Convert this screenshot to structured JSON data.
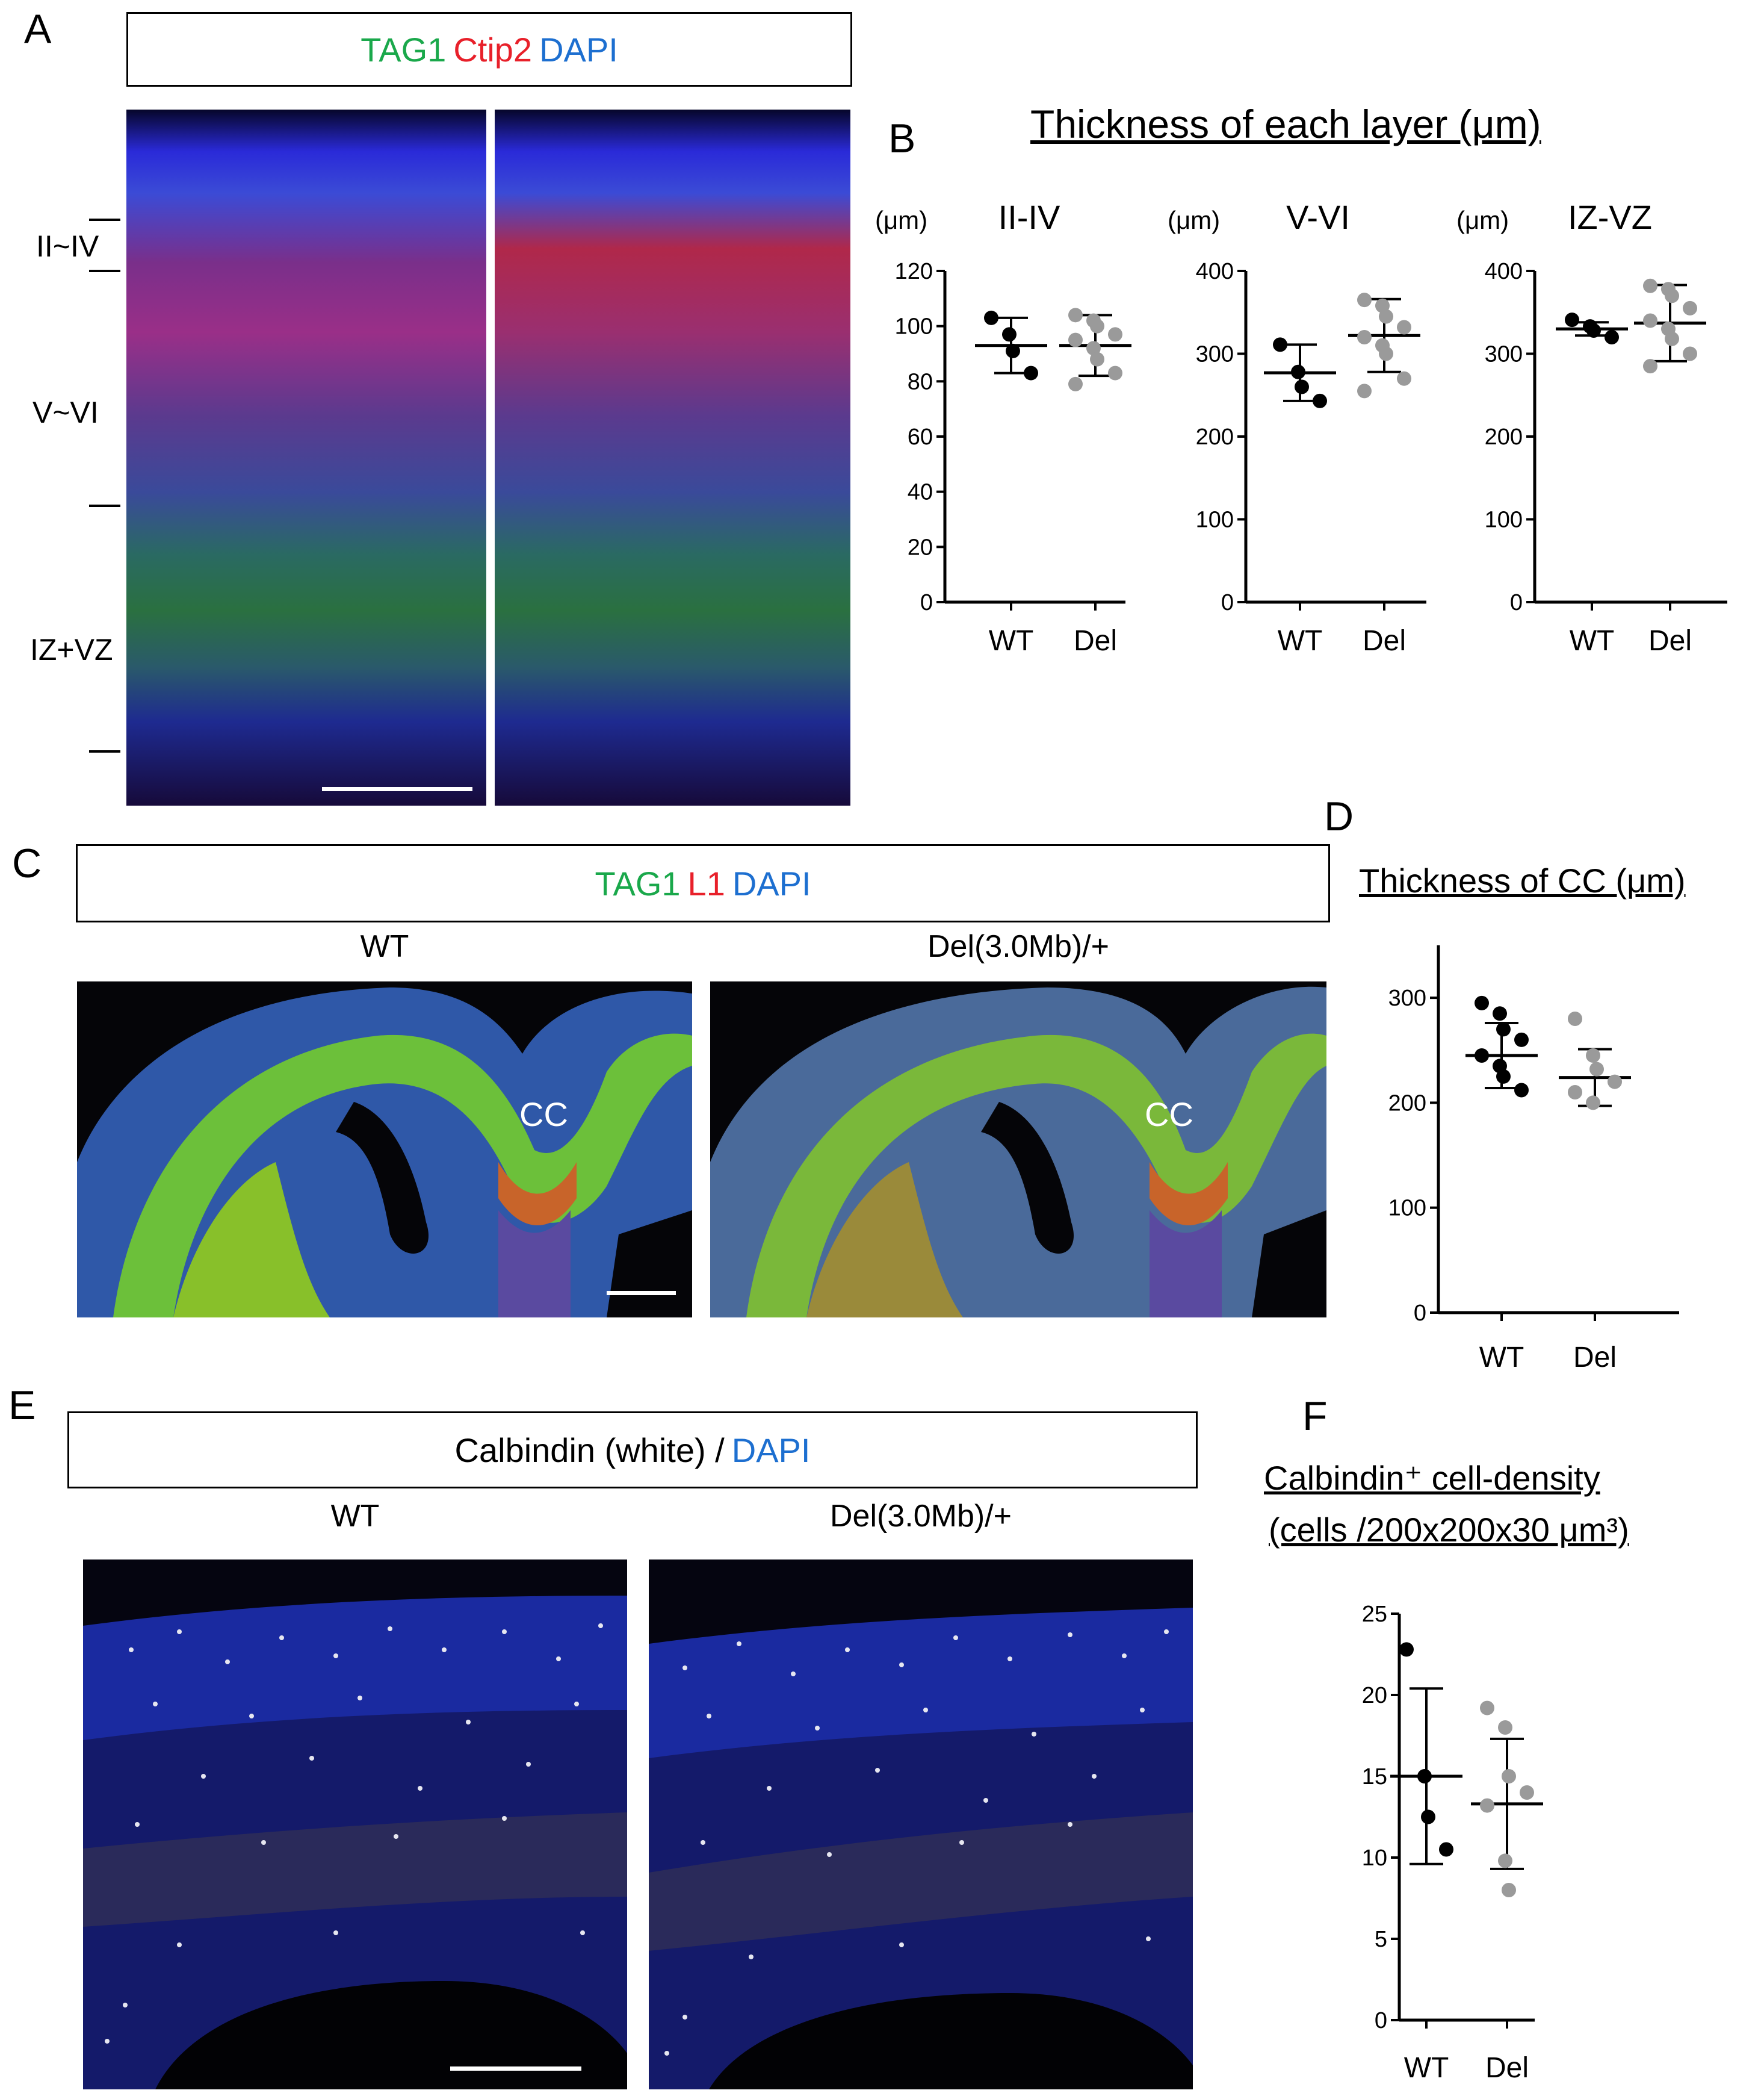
{
  "panels": {
    "A": {
      "letter": "A",
      "legend": [
        {
          "text": "TAG1",
          "color": "#1aa84b"
        },
        {
          "text": "Ctip2",
          "color": "#e8202a"
        },
        {
          "text": "DAPI",
          "color": "#1d6fd0"
        }
      ],
      "layer_labels": [
        "II~IV",
        "V~VI",
        "IZ+VZ"
      ]
    },
    "B": {
      "letter": "B",
      "title": "Thickness of each layer (μm)"
    },
    "C": {
      "letter": "C",
      "legend": [
        {
          "text": "TAG1",
          "color": "#1aa84b"
        },
        {
          "text": "L1",
          "color": "#e8202a"
        },
        {
          "text": "DAPI",
          "color": "#1d6fd0"
        }
      ],
      "image_labels": [
        "WT",
        "Del(3.0Mb)/+"
      ],
      "cc_label": "CC"
    },
    "D": {
      "letter": "D",
      "title": "Thickness of CC (μm)"
    },
    "E": {
      "letter": "E",
      "legend": [
        {
          "text": "Calbindin (white) /",
          "color": "#000000"
        },
        {
          "text": "DAPI",
          "color": "#1d6fd0"
        }
      ],
      "image_labels": [
        "WT",
        "Del(3.0Mb)/+"
      ]
    },
    "F": {
      "letter": "F",
      "title_line1": "Calbindin⁺ cell-density",
      "title_line2": "(cells /200x200x30 μm³)"
    }
  },
  "chart_data": [
    {
      "id": "B-II-IV",
      "type": "scatter",
      "title": "II-IV",
      "ylabel": "(μm)",
      "categories": [
        "WT",
        "Del"
      ],
      "ylim": [
        0,
        120
      ],
      "yticks": [
        0,
        20,
        40,
        60,
        80,
        100,
        120
      ],
      "series": [
        {
          "name": "WT",
          "color": "#000000",
          "mean": 93,
          "sd": 10,
          "points": [
            103,
            97,
            91,
            83
          ]
        },
        {
          "name": "Del",
          "color": "#9a9a9a",
          "mean": 93,
          "sd": 11,
          "points": [
            104,
            102,
            100,
            97,
            95,
            92,
            88,
            83,
            79
          ]
        }
      ]
    },
    {
      "id": "B-V-VI",
      "type": "scatter",
      "title": "V-VI",
      "ylabel": "(μm)",
      "categories": [
        "WT",
        "Del"
      ],
      "ylim": [
        0,
        400
      ],
      "yticks": [
        0,
        100,
        200,
        300,
        400
      ],
      "series": [
        {
          "name": "WT",
          "color": "#000000",
          "mean": 277,
          "sd": 34,
          "points": [
            311,
            278,
            260,
            243
          ]
        },
        {
          "name": "Del",
          "color": "#9a9a9a",
          "mean": 322,
          "sd": 44,
          "points": [
            365,
            358,
            345,
            332,
            320,
            310,
            300,
            270,
            255
          ]
        }
      ]
    },
    {
      "id": "B-IZ-VZ",
      "type": "scatter",
      "title": "IZ-VZ",
      "ylabel": "(μm)",
      "categories": [
        "WT",
        "Del"
      ],
      "ylim": [
        0,
        400
      ],
      "yticks": [
        0,
        100,
        200,
        300,
        400
      ],
      "series": [
        {
          "name": "WT",
          "color": "#000000",
          "mean": 330,
          "sd": 8,
          "points": [
            341,
            333,
            328,
            320
          ]
        },
        {
          "name": "Del",
          "color": "#9a9a9a",
          "mean": 337,
          "sd": 46,
          "points": [
            382,
            378,
            370,
            355,
            340,
            330,
            318,
            300,
            285
          ]
        }
      ]
    },
    {
      "id": "D",
      "type": "scatter",
      "title": "Thickness of CC (μm)",
      "categories": [
        "WT",
        "Del"
      ],
      "ylim": [
        0,
        350
      ],
      "yticks": [
        0,
        100,
        200,
        300
      ],
      "series": [
        {
          "name": "WT",
          "color": "#000000",
          "mean": 245,
          "sd": 31,
          "points": [
            295,
            285,
            270,
            260,
            245,
            235,
            225,
            212
          ]
        },
        {
          "name": "Del",
          "color": "#9a9a9a",
          "mean": 224,
          "sd": 27,
          "points": [
            280,
            245,
            232,
            220,
            210,
            200
          ]
        }
      ]
    },
    {
      "id": "F",
      "type": "scatter",
      "title": "Calbindin⁺ cell-density",
      "categories": [
        "WT",
        "Del"
      ],
      "ylim": [
        0,
        25
      ],
      "yticks": [
        0,
        5,
        10,
        15,
        20,
        25
      ],
      "series": [
        {
          "name": "WT",
          "color": "#000000",
          "mean": 15,
          "sd": 5.4,
          "points": [
            22.8,
            15,
            12.5,
            10.5
          ]
        },
        {
          "name": "Del",
          "color": "#9a9a9a",
          "mean": 13.3,
          "sd": 4.0,
          "points": [
            19.2,
            18,
            15,
            14,
            13.2,
            9.8,
            8
          ]
        }
      ]
    }
  ]
}
